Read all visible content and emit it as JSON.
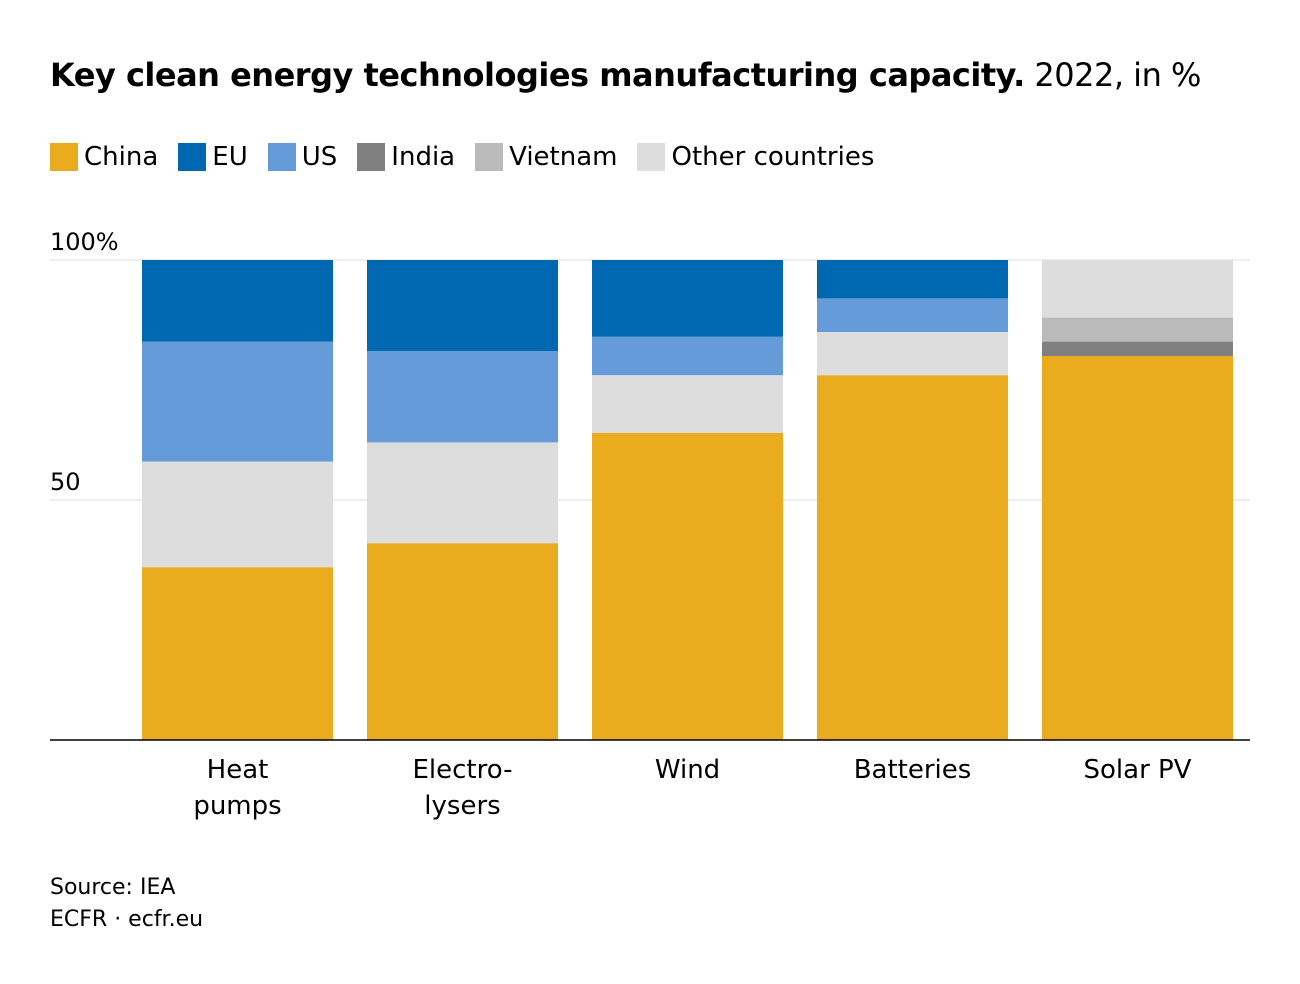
{
  "chart_data": {
    "type": "bar",
    "stacked": true,
    "title": "Key clean energy technologies manufacturing capacity.",
    "subtitle": "2022, in %",
    "categories": [
      "Heat\npumps",
      "Electro-\nlysers",
      "Wind",
      "Batteries",
      "Solar PV"
    ],
    "series": [
      {
        "name": "China",
        "color": "#ebab1e",
        "values": [
          36,
          41,
          64,
          76,
          80
        ]
      },
      {
        "name": "India",
        "color": "#808080",
        "values": [
          0,
          0,
          0,
          0,
          3
        ]
      },
      {
        "name": "Vietnam",
        "color": "#bababa",
        "values": [
          0,
          0,
          0,
          0,
          5
        ]
      },
      {
        "name": "Other countries",
        "color": "#dddddd",
        "values": [
          22,
          21,
          12,
          9,
          12
        ]
      },
      {
        "name": "US",
        "color": "#669bda",
        "values": [
          25,
          19,
          8,
          7,
          0
        ]
      },
      {
        "name": "EU",
        "color": "#0068b0",
        "values": [
          17,
          19,
          16,
          8,
          0
        ]
      }
    ],
    "legend_order": [
      "China",
      "EU",
      "US",
      "India",
      "Vietnam",
      "Other countries"
    ],
    "legend_placement": "top-left",
    "ylim": [
      0,
      100
    ],
    "yticks": [
      {
        "value": 50,
        "label": "50"
      },
      {
        "value": 100,
        "label": "100%"
      }
    ],
    "grid": true,
    "xlabel": "",
    "ylabel": ""
  },
  "source": "Source: IEA",
  "credit": "ECFR · ecfr.eu"
}
